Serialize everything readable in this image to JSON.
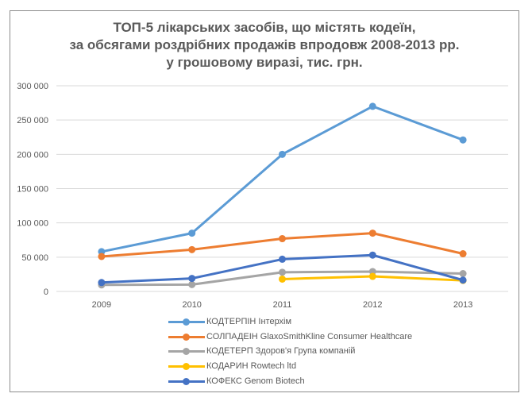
{
  "chart_data": {
    "type": "line",
    "title_lines": [
      "ТОП-5 лікарських засобів, що містять кодеїн,",
      "за обсягами роздрібних продажів впродовж 2008-2013 рр.",
      "у грошовому виразі, тис. грн."
    ],
    "xlabel": "",
    "ylabel": "",
    "ylim": [
      0,
      300000
    ],
    "grid": true,
    "legend_position": "bottom",
    "y_ticks": [
      "0",
      "50 000",
      "100 000",
      "150 000",
      "200 000",
      "250 000",
      "300 000"
    ],
    "y_tick_values": [
      0,
      50000,
      100000,
      150000,
      200000,
      250000,
      300000
    ],
    "categories": [
      "2009",
      "2010",
      "2011",
      "2012",
      "2013"
    ],
    "series": [
      {
        "name": "КОДТЕРПІН Інтерхім",
        "color": "#5b9bd5",
        "values": [
          58000,
          85000,
          200000,
          270000,
          221000
        ]
      },
      {
        "name": "СОЛПАДЕІН GlaxoSmithKline Consumer Healthcare",
        "color": "#ed7d31",
        "values": [
          51000,
          61000,
          77000,
          85000,
          55000
        ]
      },
      {
        "name": "КОДЕТЕРП Здоров'я Група компаній",
        "color": "#a5a5a5",
        "values": [
          9500,
          10000,
          28000,
          29000,
          26000
        ]
      },
      {
        "name": "КОДАРИН Rowtech ltd",
        "color": "#ffc000",
        "values": [
          null,
          null,
          18000,
          22000,
          16000
        ]
      },
      {
        "name": "КОФЕКС Genom Biotech",
        "color": "#4472c4",
        "values": [
          13000,
          19000,
          47000,
          53000,
          16500
        ]
      }
    ]
  }
}
